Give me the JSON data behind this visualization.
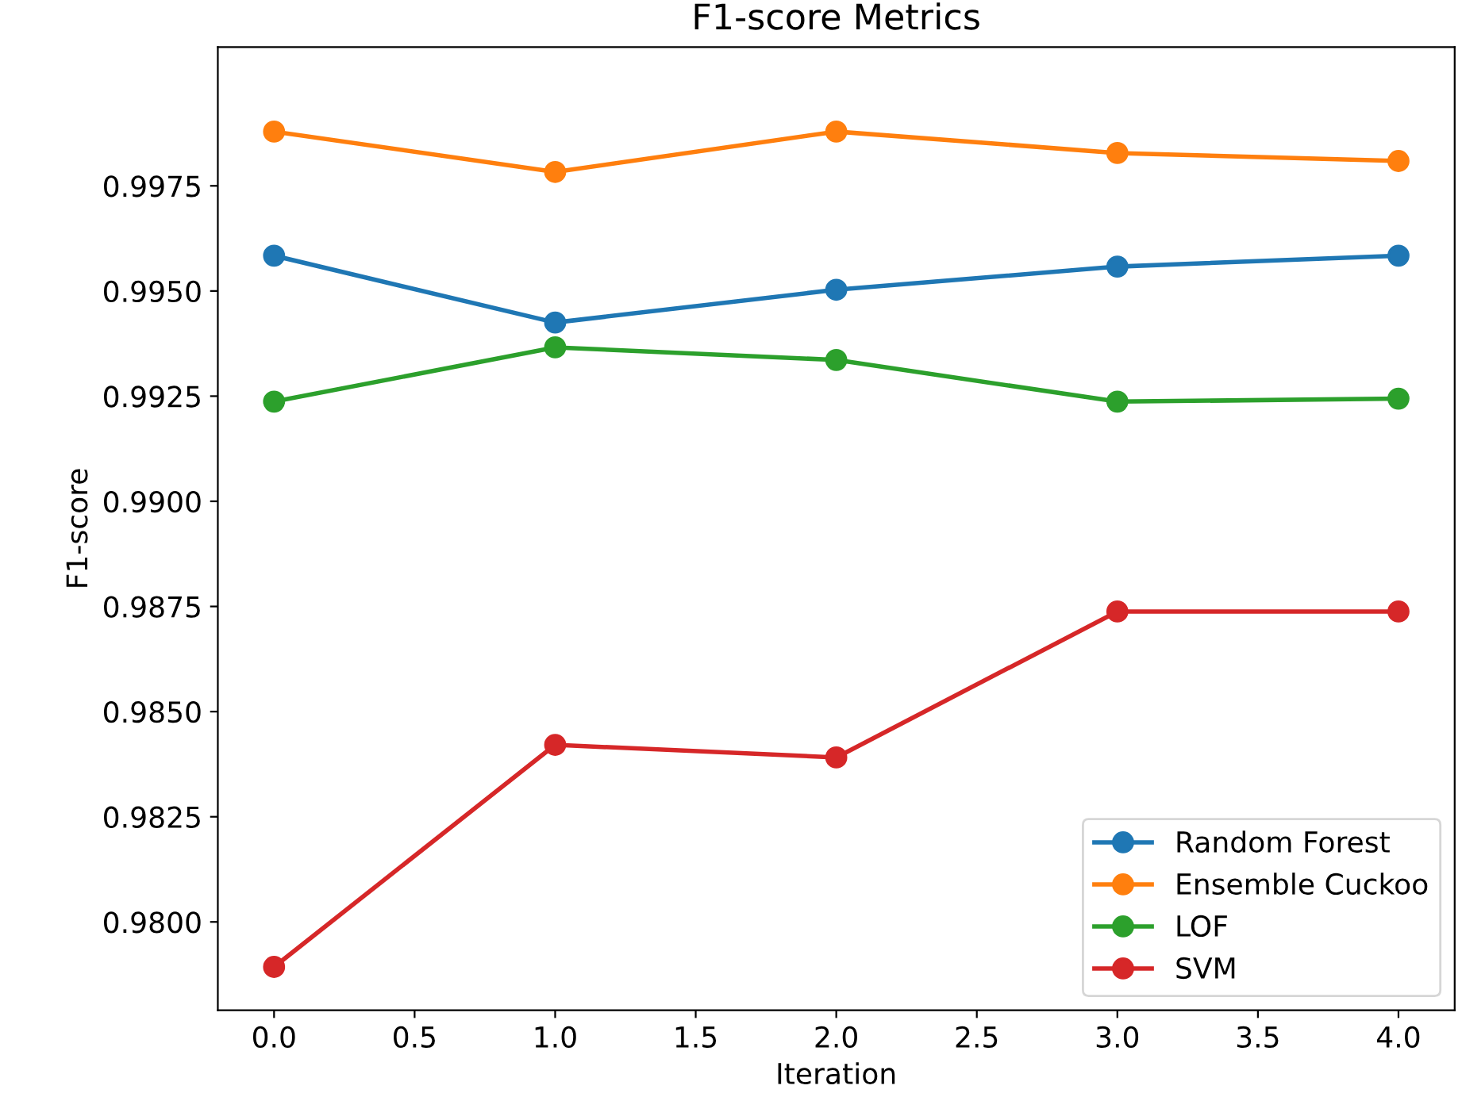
{
  "chart_data": {
    "type": "line",
    "title": "F1-score Metrics",
    "xlabel": "Iteration",
    "ylabel": "F1-score",
    "x": [
      0,
      1,
      2,
      3,
      4
    ],
    "series": [
      {
        "name": "Random Forest",
        "color": "#1f77b4",
        "values": [
          0.99584,
          0.99425,
          0.99503,
          0.99558,
          0.99584
        ]
      },
      {
        "name": "Ensemble Cuckoo",
        "color": "#ff7f0e",
        "values": [
          0.99879,
          0.99783,
          0.99879,
          0.99828,
          0.99809
        ]
      },
      {
        "name": "LOF",
        "color": "#2ca02c",
        "values": [
          0.99237,
          0.99366,
          0.99336,
          0.99237,
          0.99244
        ]
      },
      {
        "name": "SVM",
        "color": "#d62728",
        "values": [
          0.97893,
          0.98421,
          0.98391,
          0.98738,
          0.98738
        ]
      }
    ],
    "xlim": [
      -0.2,
      4.2
    ],
    "xticks": [
      {
        "value": 0,
        "label": "0.0"
      },
      {
        "value": 0.5,
        "label": "0.5"
      },
      {
        "value": 1,
        "label": "1.0"
      },
      {
        "value": 1.5,
        "label": "1.5"
      },
      {
        "value": 2,
        "label": "2.0"
      },
      {
        "value": 2.5,
        "label": "2.5"
      },
      {
        "value": 3,
        "label": "3.0"
      },
      {
        "value": 3.5,
        "label": "3.5"
      },
      {
        "value": 4,
        "label": "4.0"
      }
    ],
    "ylim": [
      0.9779,
      1.0008
    ],
    "yticks": [
      {
        "value": 0.98,
        "label": "0.9800"
      },
      {
        "value": 0.9825,
        "label": "0.9825"
      },
      {
        "value": 0.985,
        "label": "0.9850"
      },
      {
        "value": 0.9875,
        "label": "0.9875"
      },
      {
        "value": 0.99,
        "label": "0.9900"
      },
      {
        "value": 0.9925,
        "label": "0.9925"
      },
      {
        "value": 0.995,
        "label": "0.9950"
      },
      {
        "value": 0.9975,
        "label": "0.9975"
      }
    ],
    "marker": "circle",
    "line_style": "solid",
    "legend": "bottom right",
    "grid": false
  }
}
